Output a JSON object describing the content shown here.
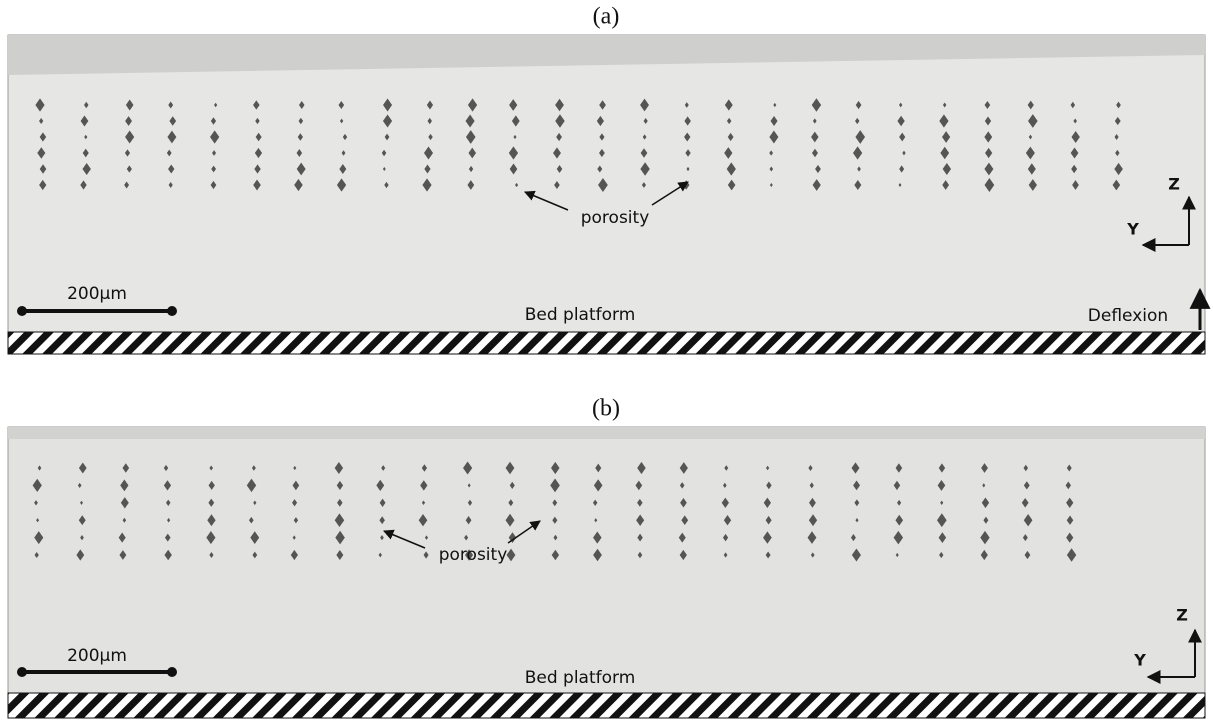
{
  "panels": [
    {
      "label": "(a)",
      "porosity_label": "porosity",
      "scale_bar": "200µm",
      "platform_label": "Bed platform",
      "axis_z": "Z",
      "axis_y": "Y",
      "deflexion_label": "Deflexion"
    },
    {
      "label": "(b)",
      "porosity_label": "porosity",
      "scale_bar": "200µm",
      "platform_label": "Bed platform",
      "axis_z": "Z",
      "axis_y": "Y"
    }
  ]
}
